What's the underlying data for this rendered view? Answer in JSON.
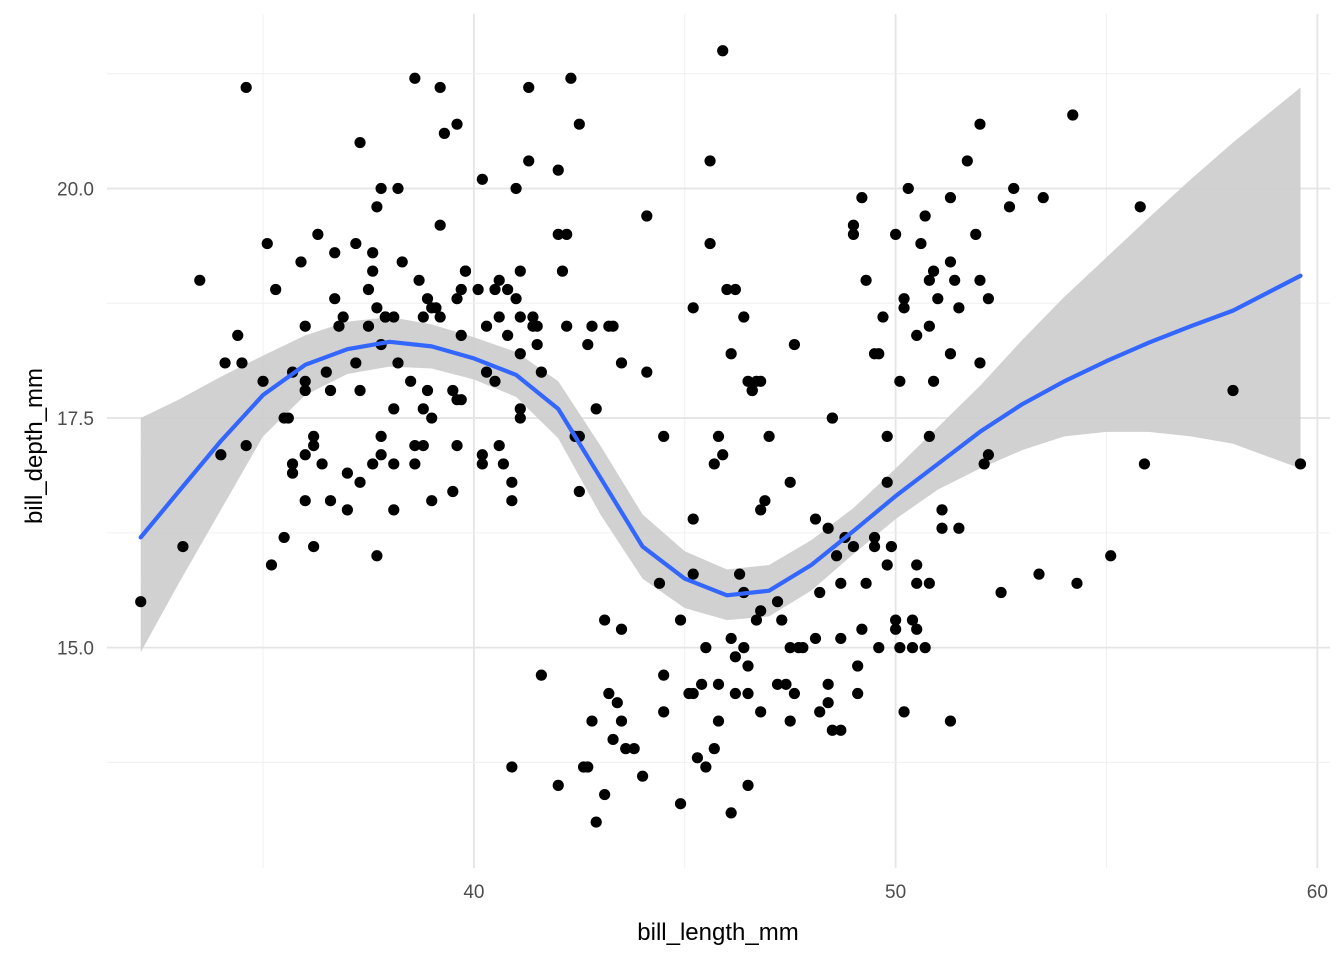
{
  "chart_data": {
    "type": "scatter",
    "xlabel": "bill_length_mm",
    "ylabel": "bill_depth_mm",
    "xlim": [
      31.3,
      60.3
    ],
    "ylim": [
      12.6,
      21.9
    ],
    "x_ticks": [
      40,
      50,
      60
    ],
    "x_tick_labels": [
      "40",
      "50",
      "60"
    ],
    "y_ticks": [
      15.0,
      17.5,
      20.0
    ],
    "y_tick_labels": [
      "15.0",
      "17.5",
      "20.0"
    ],
    "grid": true,
    "legend": "none",
    "colors": {
      "points": "#000000",
      "smooth_line": "#3366ff",
      "confidence_band": "#cccccc"
    },
    "points": [
      [
        32.1,
        15.5
      ],
      [
        33.1,
        16.1
      ],
      [
        33.5,
        19.0
      ],
      [
        34.0,
        17.1
      ],
      [
        34.1,
        18.1
      ],
      [
        34.5,
        18.1
      ],
      [
        34.4,
        18.4
      ],
      [
        34.6,
        21.1
      ],
      [
        34.6,
        17.2
      ],
      [
        35.0,
        17.9
      ],
      [
        35.1,
        19.4
      ],
      [
        35.3,
        18.9
      ],
      [
        35.2,
        15.9
      ],
      [
        35.5,
        16.2
      ],
      [
        35.5,
        17.5
      ],
      [
        35.6,
        17.5
      ],
      [
        35.7,
        18.0
      ],
      [
        35.7,
        17.0
      ],
      [
        35.7,
        16.9
      ],
      [
        35.9,
        19.2
      ],
      [
        36.0,
        16.6
      ],
      [
        36.0,
        17.8
      ],
      [
        36.0,
        17.9
      ],
      [
        36.0,
        18.5
      ],
      [
        36.0,
        17.1
      ],
      [
        36.2,
        16.1
      ],
      [
        36.2,
        17.3
      ],
      [
        36.2,
        17.2
      ],
      [
        36.3,
        19.5
      ],
      [
        36.4,
        17.0
      ],
      [
        36.5,
        18.0
      ],
      [
        36.6,
        17.8
      ],
      [
        36.6,
        16.6
      ],
      [
        36.7,
        18.8
      ],
      [
        36.7,
        19.3
      ],
      [
        36.8,
        18.5
      ],
      [
        36.9,
        18.6
      ],
      [
        37.0,
        16.9
      ],
      [
        37.0,
        16.5
      ],
      [
        37.2,
        18.1
      ],
      [
        37.2,
        19.4
      ],
      [
        37.3,
        20.5
      ],
      [
        37.3,
        17.8
      ],
      [
        37.3,
        16.8
      ],
      [
        37.5,
        18.9
      ],
      [
        37.5,
        18.5
      ],
      [
        37.6,
        19.1
      ],
      [
        37.6,
        19.3
      ],
      [
        37.6,
        17.0
      ],
      [
        37.7,
        18.7
      ],
      [
        37.7,
        19.8
      ],
      [
        37.7,
        16.0
      ],
      [
        37.8,
        20.0
      ],
      [
        37.8,
        18.3
      ],
      [
        37.8,
        17.1
      ],
      [
        37.8,
        17.3
      ],
      [
        37.9,
        18.6
      ],
      [
        37.9,
        18.6
      ],
      [
        38.1,
        18.6
      ],
      [
        38.1,
        17.6
      ],
      [
        38.1,
        17.0
      ],
      [
        38.1,
        16.5
      ],
      [
        38.2,
        18.1
      ],
      [
        38.2,
        20.0
      ],
      [
        38.3,
        19.2
      ],
      [
        38.5,
        17.9
      ],
      [
        38.6,
        21.2
      ],
      [
        38.6,
        17.2
      ],
      [
        38.6,
        17.0
      ],
      [
        38.7,
        19.0
      ],
      [
        38.8,
        18.6
      ],
      [
        38.8,
        17.2
      ],
      [
        38.8,
        17.6
      ],
      [
        38.9,
        17.8
      ],
      [
        38.9,
        18.8
      ],
      [
        39.0,
        18.7
      ],
      [
        39.0,
        17.5
      ],
      [
        39.0,
        16.6
      ],
      [
        39.1,
        18.7
      ],
      [
        39.2,
        19.6
      ],
      [
        39.2,
        18.6
      ],
      [
        39.2,
        21.1
      ],
      [
        39.3,
        20.6
      ],
      [
        39.5,
        16.7
      ],
      [
        39.5,
        17.8
      ],
      [
        39.6,
        17.7
      ],
      [
        39.6,
        18.8
      ],
      [
        39.6,
        20.7
      ],
      [
        39.6,
        17.2
      ],
      [
        39.7,
        18.4
      ],
      [
        39.7,
        17.7
      ],
      [
        39.7,
        18.9
      ],
      [
        39.8,
        19.1
      ],
      [
        39.8,
        19.1
      ],
      [
        40.1,
        18.9
      ],
      [
        40.2,
        17.0
      ],
      [
        40.2,
        17.1
      ],
      [
        40.2,
        20.1
      ],
      [
        40.3,
        18.0
      ],
      [
        40.3,
        18.5
      ],
      [
        40.5,
        17.9
      ],
      [
        40.5,
        18.9
      ],
      [
        40.6,
        18.6
      ],
      [
        40.6,
        19.0
      ],
      [
        40.6,
        17.2
      ],
      [
        40.7,
        17.0
      ],
      [
        40.8,
        18.4
      ],
      [
        40.8,
        18.9
      ],
      [
        40.9,
        16.8
      ],
      [
        40.9,
        16.6
      ],
      [
        41.0,
        18.8
      ],
      [
        41.0,
        20.0
      ],
      [
        41.1,
        19.1
      ],
      [
        41.1,
        18.6
      ],
      [
        41.1,
        17.6
      ],
      [
        41.1,
        18.2
      ],
      [
        41.1,
        17.5
      ],
      [
        41.3,
        21.1
      ],
      [
        41.3,
        20.3
      ],
      [
        41.4,
        18.6
      ],
      [
        41.4,
        18.5
      ],
      [
        41.5,
        18.3
      ],
      [
        41.5,
        18.5
      ],
      [
        41.6,
        18.0
      ],
      [
        42.0,
        19.5
      ],
      [
        42.0,
        20.2
      ],
      [
        42.1,
        19.1
      ],
      [
        42.2,
        18.5
      ],
      [
        42.2,
        19.5
      ],
      [
        42.3,
        21.2
      ],
      [
        42.4,
        17.3
      ],
      [
        42.5,
        20.7
      ],
      [
        42.5,
        16.7
      ],
      [
        42.5,
        17.3
      ],
      [
        42.7,
        18.3
      ],
      [
        42.8,
        18.5
      ],
      [
        42.9,
        17.6
      ],
      [
        43.2,
        18.5
      ],
      [
        43.3,
        18.5
      ],
      [
        43.5,
        18.1
      ],
      [
        44.1,
        19.7
      ],
      [
        44.1,
        18.0
      ],
      [
        44.5,
        17.3
      ],
      [
        45.2,
        18.7
      ],
      [
        45.6,
        20.3
      ],
      [
        45.6,
        19.4
      ],
      [
        45.7,
        17.0
      ],
      [
        45.8,
        17.3
      ],
      [
        46.0,
        18.9
      ],
      [
        46.2,
        18.9
      ],
      [
        44.9,
        15.3
      ],
      [
        44.9,
        13.3
      ],
      [
        45.1,
        14.5
      ],
      [
        45.2,
        14.5
      ],
      [
        45.2,
        15.8
      ],
      [
        45.2,
        16.4
      ],
      [
        45.3,
        13.8
      ],
      [
        45.4,
        14.6
      ],
      [
        45.5,
        13.7
      ],
      [
        45.5,
        15.0
      ],
      [
        45.7,
        13.9
      ],
      [
        45.8,
        14.6
      ],
      [
        45.8,
        14.2
      ],
      [
        45.9,
        17.1
      ],
      [
        46.1,
        13.2
      ],
      [
        46.1,
        15.1
      ],
      [
        46.2,
        14.5
      ],
      [
        46.2,
        14.9
      ],
      [
        46.3,
        15.8
      ],
      [
        46.4,
        15.0
      ],
      [
        46.4,
        15.6
      ],
      [
        46.5,
        14.5
      ],
      [
        46.5,
        13.5
      ],
      [
        46.5,
        14.8
      ],
      [
        46.6,
        17.8
      ],
      [
        46.7,
        15.3
      ],
      [
        46.8,
        14.3
      ],
      [
        46.8,
        16.5
      ],
      [
        46.8,
        15.4
      ],
      [
        46.9,
        16.6
      ],
      [
        47.0,
        17.3
      ],
      [
        47.2,
        14.6
      ],
      [
        47.2,
        15.5
      ],
      [
        47.3,
        15.3
      ],
      [
        47.4,
        14.6
      ],
      [
        47.5,
        15.0
      ],
      [
        47.5,
        14.2
      ],
      [
        47.6,
        14.5
      ],
      [
        47.6,
        18.3
      ],
      [
        47.7,
        15.0
      ],
      [
        47.8,
        15.0
      ],
      [
        48.1,
        16.4
      ],
      [
        48.1,
        15.1
      ],
      [
        48.2,
        14.3
      ],
      [
        48.2,
        15.6
      ],
      [
        48.4,
        14.6
      ],
      [
        48.4,
        14.4
      ],
      [
        48.4,
        16.3
      ],
      [
        48.5,
        14.1
      ],
      [
        48.5,
        17.5
      ],
      [
        48.6,
        16.0
      ],
      [
        48.7,
        14.1
      ],
      [
        48.7,
        15.1
      ],
      [
        48.7,
        15.7
      ],
      [
        48.8,
        16.2
      ],
      [
        49.0,
        16.1
      ],
      [
        49.1,
        14.5
      ],
      [
        49.1,
        14.8
      ],
      [
        49.2,
        15.2
      ],
      [
        49.3,
        15.7
      ],
      [
        49.5,
        16.1
      ],
      [
        49.5,
        16.2
      ],
      [
        49.6,
        15.0
      ],
      [
        49.8,
        15.9
      ],
      [
        49.9,
        16.1
      ],
      [
        50.0,
        15.2
      ],
      [
        50.0,
        15.3
      ],
      [
        50.1,
        15.0
      ],
      [
        50.2,
        14.3
      ],
      [
        50.4,
        15.0
      ],
      [
        50.4,
        15.3
      ],
      [
        50.5,
        15.2
      ],
      [
        50.5,
        15.9
      ],
      [
        50.5,
        15.7
      ],
      [
        50.7,
        15.0
      ],
      [
        50.8,
        15.7
      ],
      [
        51.1,
        16.3
      ],
      [
        51.1,
        16.5
      ],
      [
        51.3,
        14.2
      ],
      [
        51.5,
        16.3
      ],
      [
        52.1,
        17.0
      ],
      [
        52.2,
        17.1
      ],
      [
        52.5,
        15.6
      ],
      [
        53.4,
        15.8
      ],
      [
        54.3,
        15.7
      ],
      [
        55.1,
        16.0
      ],
      [
        55.9,
        17.0
      ],
      [
        58.0,
        17.8
      ],
      [
        59.6,
        17.0
      ],
      [
        55.8,
        19.8
      ],
      [
        45.9,
        21.5
      ],
      [
        46.4,
        18.6
      ],
      [
        46.1,
        18.2
      ],
      [
        46.6,
        17.8
      ],
      [
        46.7,
        17.9
      ],
      [
        46.8,
        17.9
      ],
      [
        46.5,
        17.9
      ],
      [
        47.5,
        16.8
      ],
      [
        48.5,
        17.5
      ],
      [
        49.0,
        19.5
      ],
      [
        49.0,
        19.6
      ],
      [
        49.2,
        19.9
      ],
      [
        49.3,
        19.0
      ],
      [
        49.5,
        18.2
      ],
      [
        49.6,
        18.2
      ],
      [
        49.7,
        18.6
      ],
      [
        49.8,
        17.3
      ],
      [
        49.8,
        16.8
      ],
      [
        50.0,
        19.5
      ],
      [
        50.1,
        17.9
      ],
      [
        50.2,
        18.8
      ],
      [
        50.2,
        18.7
      ],
      [
        50.3,
        20.0
      ],
      [
        50.5,
        18.4
      ],
      [
        50.6,
        19.4
      ],
      [
        50.7,
        19.7
      ],
      [
        50.8,
        19.0
      ],
      [
        50.8,
        18.5
      ],
      [
        50.9,
        19.1
      ],
      [
        51.0,
        18.8
      ],
      [
        50.9,
        17.9
      ],
      [
        50.8,
        17.3
      ],
      [
        51.3,
        18.2
      ],
      [
        51.3,
        19.2
      ],
      [
        51.3,
        19.9
      ],
      [
        51.4,
        19.0
      ],
      [
        51.5,
        18.7
      ],
      [
        51.7,
        20.3
      ],
      [
        51.9,
        19.5
      ],
      [
        52.0,
        18.1
      ],
      [
        52.0,
        19.0
      ],
      [
        52.0,
        20.7
      ],
      [
        52.2,
        18.8
      ],
      [
        52.7,
        19.8
      ],
      [
        52.8,
        20.0
      ],
      [
        53.5,
        19.9
      ],
      [
        54.2,
        20.8
      ],
      [
        42.9,
        13.1
      ],
      [
        43.2,
        14.5
      ],
      [
        43.3,
        14.0
      ],
      [
        43.4,
        14.4
      ],
      [
        43.5,
        14.2
      ],
      [
        43.6,
        13.9
      ],
      [
        43.8,
        13.9
      ],
      [
        44.0,
        13.6
      ],
      [
        44.4,
        15.7
      ],
      [
        44.5,
        14.7
      ],
      [
        44.5,
        14.3
      ],
      [
        43.5,
        15.2
      ],
      [
        42.7,
        13.7
      ],
      [
        42.8,
        14.2
      ],
      [
        42.6,
        13.7
      ],
      [
        42.0,
        13.5
      ],
      [
        41.6,
        14.7
      ],
      [
        40.9,
        13.7
      ],
      [
        43.1,
        13.4
      ],
      [
        43.1,
        15.3
      ]
    ],
    "smooth_line": [
      [
        32.1,
        16.2
      ],
      [
        33.0,
        16.7
      ],
      [
        34.0,
        17.25
      ],
      [
        35.0,
        17.75
      ],
      [
        36.0,
        18.08
      ],
      [
        37.0,
        18.25
      ],
      [
        38.0,
        18.33
      ],
      [
        39.0,
        18.28
      ],
      [
        40.0,
        18.15
      ],
      [
        41.0,
        17.97
      ],
      [
        42.0,
        17.6
      ],
      [
        43.0,
        16.85
      ],
      [
        44.0,
        16.1
      ],
      [
        45.0,
        15.75
      ],
      [
        46.0,
        15.57
      ],
      [
        47.0,
        15.62
      ],
      [
        48.0,
        15.9
      ],
      [
        49.0,
        16.27
      ],
      [
        50.0,
        16.65
      ],
      [
        51.0,
        17.0
      ],
      [
        52.0,
        17.35
      ],
      [
        53.0,
        17.65
      ],
      [
        54.0,
        17.9
      ],
      [
        55.0,
        18.12
      ],
      [
        56.0,
        18.32
      ],
      [
        57.0,
        18.5
      ],
      [
        58.0,
        18.67
      ],
      [
        59.6,
        19.05
      ]
    ],
    "band_upper": [
      [
        32.1,
        17.5
      ],
      [
        33.0,
        17.7
      ],
      [
        34.0,
        17.95
      ],
      [
        35.0,
        18.18
      ],
      [
        36.0,
        18.4
      ],
      [
        37.0,
        18.55
      ],
      [
        38.0,
        18.6
      ],
      [
        39.0,
        18.52
      ],
      [
        40.0,
        18.38
      ],
      [
        41.0,
        18.22
      ],
      [
        42.0,
        17.9
      ],
      [
        43.0,
        17.2
      ],
      [
        44.0,
        16.45
      ],
      [
        45.0,
        16.05
      ],
      [
        46.0,
        15.85
      ],
      [
        47.0,
        15.9
      ],
      [
        48.0,
        16.17
      ],
      [
        49.0,
        16.52
      ],
      [
        50.0,
        16.95
      ],
      [
        51.0,
        17.4
      ],
      [
        52.0,
        17.85
      ],
      [
        53.0,
        18.35
      ],
      [
        54.0,
        18.82
      ],
      [
        55.0,
        19.25
      ],
      [
        56.0,
        19.68
      ],
      [
        57.0,
        20.1
      ],
      [
        58.0,
        20.5
      ],
      [
        59.6,
        21.1
      ]
    ],
    "band_lower": [
      [
        32.1,
        14.95
      ],
      [
        33.0,
        15.7
      ],
      [
        34.0,
        16.5
      ],
      [
        35.0,
        17.3
      ],
      [
        36.0,
        17.75
      ],
      [
        37.0,
        17.98
      ],
      [
        38.0,
        18.06
      ],
      [
        39.0,
        18.04
      ],
      [
        40.0,
        17.92
      ],
      [
        41.0,
        17.73
      ],
      [
        42.0,
        17.28
      ],
      [
        43.0,
        16.45
      ],
      [
        44.0,
        15.75
      ],
      [
        45.0,
        15.43
      ],
      [
        46.0,
        15.3
      ],
      [
        47.0,
        15.34
      ],
      [
        48.0,
        15.62
      ],
      [
        49.0,
        16.02
      ],
      [
        50.0,
        16.4
      ],
      [
        51.0,
        16.72
      ],
      [
        52.0,
        16.95
      ],
      [
        53.0,
        17.15
      ],
      [
        54.0,
        17.3
      ],
      [
        55.0,
        17.35
      ],
      [
        56.0,
        17.35
      ],
      [
        57.0,
        17.3
      ],
      [
        58.0,
        17.22
      ],
      [
        59.6,
        16.95
      ]
    ]
  }
}
